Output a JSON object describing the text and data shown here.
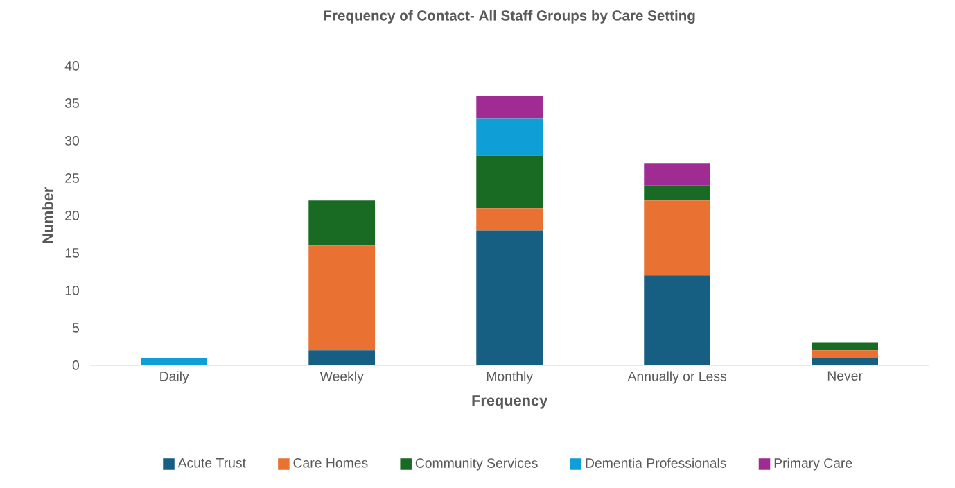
{
  "chart_data": {
    "type": "bar",
    "title": "Frequency of Contact- All Staff Groups by Care Setting",
    "xlabel": "Frequency",
    "ylabel": "Number",
    "categories": [
      "Daily",
      "Weekly",
      "Monthly",
      "Annually or Less",
      "Never"
    ],
    "stacked": true,
    "series": [
      {
        "name": "Acute Trust",
        "color": "#175e83",
        "values": [
          0,
          2,
          18,
          12,
          1
        ]
      },
      {
        "name": "Care Homes",
        "color": "#e97132",
        "values": [
          0,
          14,
          3,
          10,
          1
        ]
      },
      {
        "name": "Community Services",
        "color": "#196b24",
        "values": [
          0,
          6,
          7,
          2,
          1
        ]
      },
      {
        "name": "Dementia Professionals",
        "color": "#0f9ed5",
        "values": [
          1,
          0,
          5,
          0,
          0
        ]
      },
      {
        "name": "Primary Care",
        "color": "#a02b93",
        "values": [
          0,
          0,
          3,
          3,
          0
        ]
      }
    ],
    "ylim": [
      0,
      40
    ],
    "yticks": [
      0,
      5,
      10,
      15,
      20,
      25,
      30,
      35,
      40
    ],
    "legend": "bottom"
  }
}
